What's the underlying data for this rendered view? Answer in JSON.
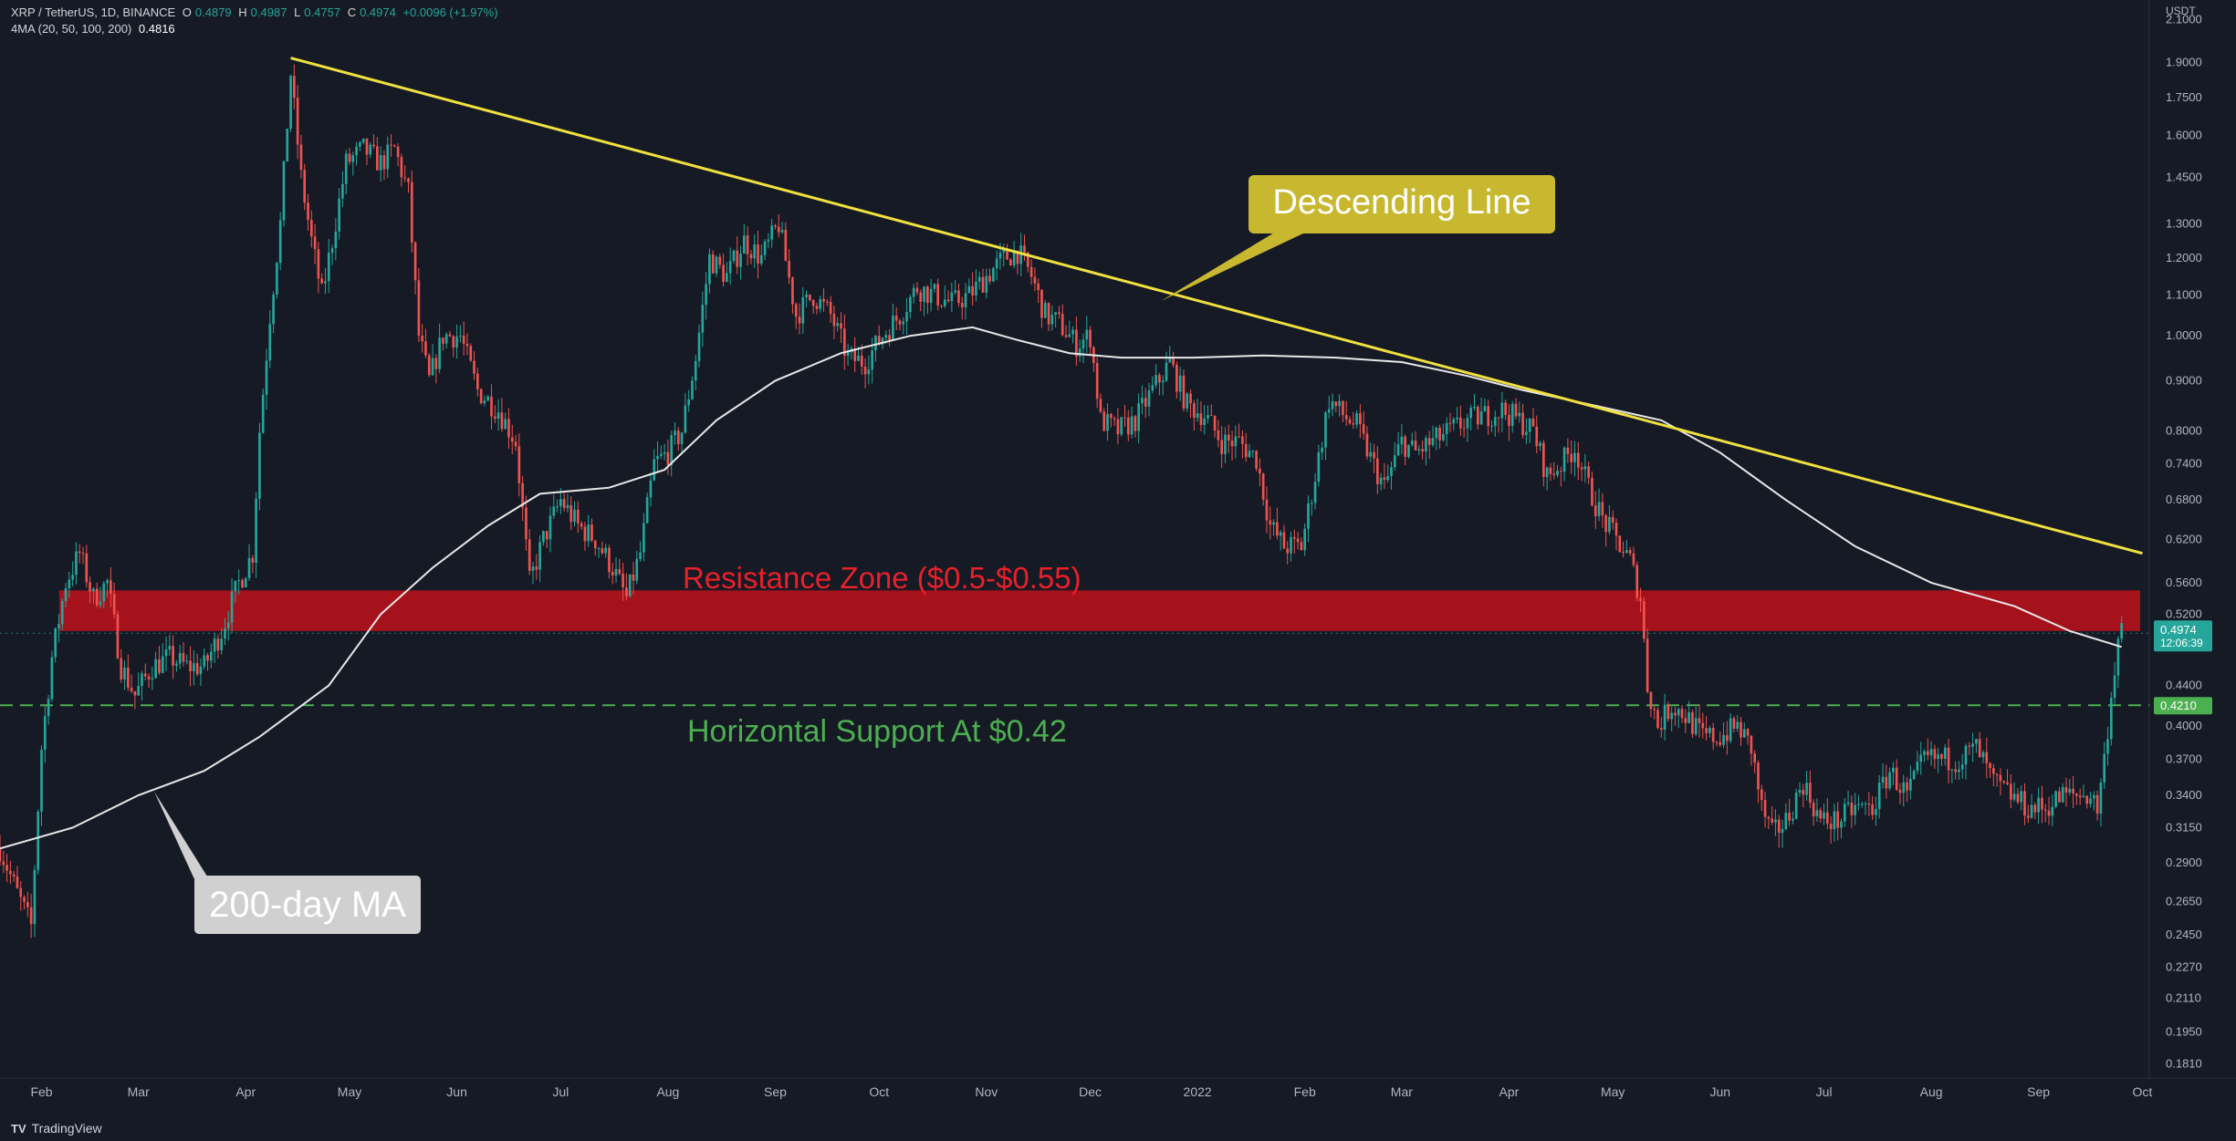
{
  "header": {
    "symbol": "XRP / TetherUS, 1D, BINANCE",
    "open_label": "O",
    "open": "0.4879",
    "high_label": "H",
    "high": "0.4987",
    "low_label": "L",
    "low": "0.4757",
    "close_label": "C",
    "close": "0.4974",
    "change": "+0.0096 (+1.97%)",
    "ma_label": "4MA (20, 50, 100, 200)",
    "ma_value": "0.4816"
  },
  "branding": {
    "logo_text": "TradingView",
    "logo_mark": "TV"
  },
  "colors": {
    "background": "#161a25",
    "up": "#26a69a",
    "down": "#ef5350",
    "ma": "#e8e8e8",
    "trendline": "#f0e040",
    "resistance": "#b3111b",
    "support": "#4caf50"
  },
  "chart_data": {
    "type": "candlestick",
    "scale": "log",
    "currency_unit": "USDT",
    "ylim": [
      0.175,
      2.2
    ],
    "y_ticks": [
      "2.1000",
      "1.9000",
      "1.7500",
      "1.6000",
      "1.4500",
      "1.3000",
      "1.2000",
      "1.1000",
      "1.0000",
      "0.9000",
      "0.8000",
      "0.7400",
      "0.6800",
      "0.6200",
      "0.5600",
      "0.5200",
      "0.4400",
      "0.4000",
      "0.3700",
      "0.3400",
      "0.3150",
      "0.2900",
      "0.2650",
      "0.2450",
      "0.2270",
      "0.2110",
      "0.1950",
      "0.1810"
    ],
    "x_range": [
      "2021-01-20",
      "2022-10-03"
    ],
    "x_ticks": [
      {
        "label": "Feb",
        "date": "2021-02-01"
      },
      {
        "label": "Mar",
        "date": "2021-03-01"
      },
      {
        "label": "Apr",
        "date": "2021-04-01"
      },
      {
        "label": "May",
        "date": "2021-05-01"
      },
      {
        "label": "Jun",
        "date": "2021-06-01"
      },
      {
        "label": "Jul",
        "date": "2021-07-01"
      },
      {
        "label": "Aug",
        "date": "2021-08-01"
      },
      {
        "label": "Sep",
        "date": "2021-09-01"
      },
      {
        "label": "Oct",
        "date": "2021-10-01"
      },
      {
        "label": "Nov",
        "date": "2021-11-01"
      },
      {
        "label": "Dec",
        "date": "2021-12-01"
      },
      {
        "label": "2022",
        "date": "2022-01-01"
      },
      {
        "label": "Feb",
        "date": "2022-02-01"
      },
      {
        "label": "Mar",
        "date": "2022-03-01"
      },
      {
        "label": "Apr",
        "date": "2022-04-01"
      },
      {
        "label": "May",
        "date": "2022-05-01"
      },
      {
        "label": "Jun",
        "date": "2022-06-01"
      },
      {
        "label": "Jul",
        "date": "2022-07-01"
      },
      {
        "label": "Aug",
        "date": "2022-08-01"
      },
      {
        "label": "Sep",
        "date": "2022-09-01"
      },
      {
        "label": "Oct",
        "date": "2022-10-01"
      }
    ],
    "price_path": [
      [
        "2021-01-20",
        0.3
      ],
      [
        "2021-01-25",
        0.27
      ],
      [
        "2021-01-29",
        0.25
      ],
      [
        "2021-02-01",
        0.38
      ],
      [
        "2021-02-04",
        0.47
      ],
      [
        "2021-02-08",
        0.56
      ],
      [
        "2021-02-12",
        0.6
      ],
      [
        "2021-02-16",
        0.54
      ],
      [
        "2021-02-20",
        0.56
      ],
      [
        "2021-02-24",
        0.46
      ],
      [
        "2021-02-28",
        0.43
      ],
      [
        "2021-03-05",
        0.46
      ],
      [
        "2021-03-10",
        0.47
      ],
      [
        "2021-03-15",
        0.46
      ],
      [
        "2021-03-20",
        0.46
      ],
      [
        "2021-03-25",
        0.5
      ],
      [
        "2021-03-30",
        0.56
      ],
      [
        "2021-04-03",
        0.6
      ],
      [
        "2021-04-05",
        0.8
      ],
      [
        "2021-04-08",
        1.05
      ],
      [
        "2021-04-11",
        1.3
      ],
      [
        "2021-04-14",
        1.85
      ],
      [
        "2021-04-17",
        1.45
      ],
      [
        "2021-04-20",
        1.25
      ],
      [
        "2021-04-23",
        1.1
      ],
      [
        "2021-04-26",
        1.25
      ],
      [
        "2021-04-30",
        1.5
      ],
      [
        "2021-05-05",
        1.55
      ],
      [
        "2021-05-10",
        1.5
      ],
      [
        "2021-05-14",
        1.55
      ],
      [
        "2021-05-18",
        1.4
      ],
      [
        "2021-05-21",
        1.0
      ],
      [
        "2021-05-24",
        0.9
      ],
      [
        "2021-05-28",
        1.0
      ],
      [
        "2021-06-02",
        1.0
      ],
      [
        "2021-06-07",
        0.88
      ],
      [
        "2021-06-13",
        0.84
      ],
      [
        "2021-06-18",
        0.78
      ],
      [
        "2021-06-22",
        0.56
      ],
      [
        "2021-06-26",
        0.62
      ],
      [
        "2021-07-01",
        0.68
      ],
      [
        "2021-07-06",
        0.64
      ],
      [
        "2021-07-11",
        0.62
      ],
      [
        "2021-07-16",
        0.58
      ],
      [
        "2021-07-20",
        0.54
      ],
      [
        "2021-07-24",
        0.6
      ],
      [
        "2021-07-28",
        0.74
      ],
      [
        "2021-08-01",
        0.76
      ],
      [
        "2021-08-05",
        0.8
      ],
      [
        "2021-08-09",
        0.95
      ],
      [
        "2021-08-13",
        1.2
      ],
      [
        "2021-08-18",
        1.15
      ],
      [
        "2021-08-23",
        1.25
      ],
      [
        "2021-08-28",
        1.2
      ],
      [
        "2021-09-02",
        1.3
      ],
      [
        "2021-09-07",
        1.05
      ],
      [
        "2021-09-12",
        1.1
      ],
      [
        "2021-09-17",
        1.05
      ],
      [
        "2021-09-22",
        0.95
      ],
      [
        "2021-09-27",
        0.94
      ],
      [
        "2021-10-02",
        1.0
      ],
      [
        "2021-10-07",
        1.05
      ],
      [
        "2021-10-12",
        1.12
      ],
      [
        "2021-10-17",
        1.1
      ],
      [
        "2021-10-22",
        1.08
      ],
      [
        "2021-10-27",
        1.1
      ],
      [
        "2021-11-01",
        1.15
      ],
      [
        "2021-11-06",
        1.2
      ],
      [
        "2021-11-10",
        1.22
      ],
      [
        "2021-11-14",
        1.15
      ],
      [
        "2021-11-18",
        1.05
      ],
      [
        "2021-11-22",
        1.03
      ],
      [
        "2021-11-27",
        0.98
      ],
      [
        "2021-12-01",
        1.0
      ],
      [
        "2021-12-04",
        0.82
      ],
      [
        "2021-12-09",
        0.8
      ],
      [
        "2021-12-14",
        0.82
      ],
      [
        "2021-12-19",
        0.88
      ],
      [
        "2021-12-24",
        0.94
      ],
      [
        "2021-12-29",
        0.85
      ],
      [
        "2022-01-03",
        0.83
      ],
      [
        "2022-01-08",
        0.78
      ],
      [
        "2022-01-13",
        0.78
      ],
      [
        "2022-01-18",
        0.75
      ],
      [
        "2022-01-22",
        0.64
      ],
      [
        "2022-01-26",
        0.61
      ],
      [
        "2022-01-31",
        0.61
      ],
      [
        "2022-02-04",
        0.72
      ],
      [
        "2022-02-08",
        0.86
      ],
      [
        "2022-02-12",
        0.83
      ],
      [
        "2022-02-16",
        0.81
      ],
      [
        "2022-02-20",
        0.75
      ],
      [
        "2022-02-24",
        0.7
      ],
      [
        "2022-03-01",
        0.78
      ],
      [
        "2022-03-05",
        0.76
      ],
      [
        "2022-03-10",
        0.78
      ],
      [
        "2022-03-15",
        0.8
      ],
      [
        "2022-03-20",
        0.82
      ],
      [
        "2022-03-25",
        0.83
      ],
      [
        "2022-03-30",
        0.84
      ],
      [
        "2022-04-04",
        0.82
      ],
      [
        "2022-04-08",
        0.8
      ],
      [
        "2022-04-12",
        0.72
      ],
      [
        "2022-04-16",
        0.74
      ],
      [
        "2022-04-20",
        0.77
      ],
      [
        "2022-04-24",
        0.7
      ],
      [
        "2022-04-28",
        0.65
      ],
      [
        "2022-05-02",
        0.62
      ],
      [
        "2022-05-06",
        0.59
      ],
      [
        "2022-05-09",
        0.54
      ],
      [
        "2022-05-11",
        0.44
      ],
      [
        "2022-05-14",
        0.4
      ],
      [
        "2022-05-18",
        0.42
      ],
      [
        "2022-05-22",
        0.41
      ],
      [
        "2022-05-27",
        0.39
      ],
      [
        "2022-06-01",
        0.39
      ],
      [
        "2022-06-06",
        0.4
      ],
      [
        "2022-06-10",
        0.38
      ],
      [
        "2022-06-13",
        0.33
      ],
      [
        "2022-06-16",
        0.31
      ],
      [
        "2022-06-20",
        0.32
      ],
      [
        "2022-06-25",
        0.35
      ],
      [
        "2022-06-30",
        0.32
      ],
      [
        "2022-07-05",
        0.32
      ],
      [
        "2022-07-10",
        0.33
      ],
      [
        "2022-07-15",
        0.33
      ],
      [
        "2022-07-20",
        0.36
      ],
      [
        "2022-07-25",
        0.34
      ],
      [
        "2022-07-30",
        0.37
      ],
      [
        "2022-08-04",
        0.37
      ],
      [
        "2022-08-09",
        0.37
      ],
      [
        "2022-08-14",
        0.38
      ],
      [
        "2022-08-19",
        0.35
      ],
      [
        "2022-08-24",
        0.34
      ],
      [
        "2022-08-29",
        0.33
      ],
      [
        "2022-09-03",
        0.33
      ],
      [
        "2022-09-08",
        0.34
      ],
      [
        "2022-09-13",
        0.34
      ],
      [
        "2022-09-16",
        0.34
      ],
      [
        "2022-09-18",
        0.33
      ],
      [
        "2022-09-20",
        0.37
      ],
      [
        "2022-09-22",
        0.43
      ],
      [
        "2022-09-24",
        0.49
      ],
      [
        "2022-09-25",
        0.4974
      ]
    ],
    "ma200_path": [
      [
        "2021-01-20",
        0.3
      ],
      [
        "2021-02-10",
        0.315
      ],
      [
        "2021-03-01",
        0.34
      ],
      [
        "2021-03-20",
        0.36
      ],
      [
        "2021-04-05",
        0.39
      ],
      [
        "2021-04-25",
        0.44
      ],
      [
        "2021-05-10",
        0.52
      ],
      [
        "2021-05-25",
        0.58
      ],
      [
        "2021-06-10",
        0.64
      ],
      [
        "2021-06-25",
        0.69
      ],
      [
        "2021-07-15",
        0.7
      ],
      [
        "2021-07-31",
        0.73
      ],
      [
        "2021-08-15",
        0.82
      ],
      [
        "2021-09-01",
        0.9
      ],
      [
        "2021-09-20",
        0.96
      ],
      [
        "2021-10-10",
        1.0
      ],
      [
        "2021-10-28",
        1.02
      ],
      [
        "2021-11-10",
        0.99
      ],
      [
        "2021-11-25",
        0.96
      ],
      [
        "2021-12-10",
        0.95
      ],
      [
        "2021-12-31",
        0.95
      ],
      [
        "2022-01-20",
        0.955
      ],
      [
        "2022-02-10",
        0.95
      ],
      [
        "2022-03-01",
        0.94
      ],
      [
        "2022-03-20",
        0.91
      ],
      [
        "2022-04-05",
        0.88
      ],
      [
        "2022-04-25",
        0.85
      ],
      [
        "2022-05-15",
        0.82
      ],
      [
        "2022-06-01",
        0.76
      ],
      [
        "2022-06-20",
        0.68
      ],
      [
        "2022-07-10",
        0.61
      ],
      [
        "2022-08-01",
        0.56
      ],
      [
        "2022-08-25",
        0.53
      ],
      [
        "2022-09-10",
        0.5
      ],
      [
        "2022-09-25",
        0.4816
      ]
    ],
    "trendline": [
      [
        "2021-04-14",
        1.92
      ],
      [
        "2022-10-01",
        0.6
      ]
    ],
    "resistance_zone": [
      0.5,
      0.55
    ],
    "support_level": 0.42,
    "last_price": {
      "value": 0.4974,
      "label": "0.4974",
      "countdown": "12:06:39"
    },
    "support_label": "0.4210",
    "annotations": {
      "descending": "Descending Line",
      "resistance": "Resistance Zone ($0.5-$0.55)",
      "support": "Horizontal Support At $0.42",
      "ma200": "200-day MA"
    }
  }
}
